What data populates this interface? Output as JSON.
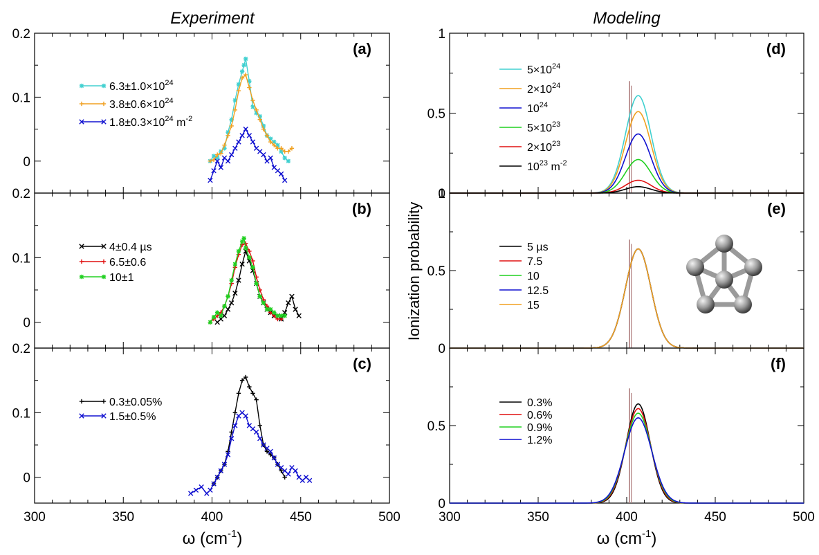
{
  "headers": {
    "left": "Experiment",
    "right": "Modeling"
  },
  "x_axis_label": {
    "base": "ω (cm",
    "exp": "-1",
    "close": ")"
  },
  "y_axis_label": "Ionization probability",
  "colors": {
    "cyan": "#40d0d0",
    "orange": "#f0a020",
    "blue": "#1010d0",
    "green": "#20d020",
    "red": "#e01010",
    "black": "#000000",
    "marker": "#b08080"
  },
  "chart_data": [
    {
      "type": "line",
      "panel": "(a)",
      "xlim": [
        300,
        500
      ],
      "ylim": [
        -0.05,
        0.2
      ],
      "x_ticks": [
        "300",
        "350",
        "400",
        "450",
        "500"
      ],
      "y_ticks": [
        {
          "v": 0,
          "label": "0"
        },
        {
          "v": 0.1,
          "label": "0.1"
        },
        {
          "v": 0.2,
          "label": "0.2"
        }
      ],
      "series": [
        {
          "name": "6.3±1.0×10^24",
          "color": "cyan",
          "marker": "*",
          "x": [
            399,
            401,
            403,
            405,
            407,
            409,
            411,
            413,
            415,
            417,
            418,
            419,
            421,
            423,
            425,
            427,
            429,
            431,
            433,
            435,
            437,
            439,
            441,
            443
          ],
          "y": [
            0.0,
            0.008,
            0.005,
            0.015,
            0.02,
            0.045,
            0.065,
            0.095,
            0.12,
            0.14,
            0.15,
            0.16,
            0.125,
            0.085,
            0.075,
            0.07,
            0.055,
            0.04,
            0.035,
            0.03,
            0.025,
            0.015,
            0.005,
            0.0
          ]
        },
        {
          "name": "3.8±0.6×10^24",
          "color": "orange",
          "marker": "+",
          "x": [
            399,
            401,
            403,
            405,
            407,
            409,
            411,
            413,
            415,
            417,
            419,
            421,
            423,
            425,
            427,
            429,
            431,
            433,
            435,
            437,
            439,
            441,
            443,
            445
          ],
          "y": [
            0.0,
            0.002,
            0.01,
            0.012,
            0.025,
            0.04,
            0.055,
            0.08,
            0.11,
            0.13,
            0.135,
            0.115,
            0.095,
            0.08,
            0.065,
            0.05,
            0.04,
            0.03,
            0.025,
            0.02,
            0.02,
            0.015,
            0.015,
            0.02
          ]
        },
        {
          "name": "1.8±0.3×10^24 m^-2",
          "color": "blue",
          "marker": "x",
          "x": [
            399,
            401,
            403,
            405,
            407,
            409,
            411,
            413,
            415,
            417,
            419,
            421,
            423,
            425,
            427,
            429,
            431,
            433,
            435,
            437,
            439,
            441
          ],
          "y": [
            -0.03,
            -0.015,
            0.0,
            -0.01,
            0.005,
            0.0,
            0.01,
            0.02,
            0.03,
            0.04,
            0.05,
            0.04,
            0.03,
            0.02,
            0.015,
            0.01,
            0.0,
            0.005,
            -0.01,
            -0.015,
            -0.02,
            -0.03
          ]
        }
      ]
    },
    {
      "type": "line",
      "panel": "(b)",
      "xlim": [
        300,
        500
      ],
      "ylim": [
        -0.04,
        0.2
      ],
      "x_ticks": [
        "300",
        "350",
        "400",
        "450",
        "500"
      ],
      "y_ticks": [
        {
          "v": 0,
          "label": "0"
        },
        {
          "v": 0.1,
          "label": "0.1"
        },
        {
          "v": 0.2,
          "label": "0.2"
        }
      ],
      "series": [
        {
          "name": "4±0.4 µs",
          "color": "black",
          "marker": "x",
          "x": [
            403,
            405,
            407,
            409,
            411,
            413,
            415,
            417,
            419,
            421,
            423,
            425,
            427,
            429,
            431,
            433,
            435,
            437,
            439,
            441,
            443,
            445,
            447,
            449
          ],
          "y": [
            0.0,
            0.005,
            0.01,
            0.02,
            0.03,
            0.045,
            0.065,
            0.09,
            0.11,
            0.095,
            0.08,
            0.06,
            0.04,
            0.03,
            0.02,
            0.015,
            0.01,
            0.01,
            0.005,
            0.015,
            0.03,
            0.04,
            0.02,
            0.01
          ]
        },
        {
          "name": "6.5±0.6",
          "color": "red",
          "marker": "+",
          "x": [
            399,
            401,
            403,
            405,
            407,
            409,
            411,
            413,
            415,
            417,
            419,
            421,
            423,
            425,
            427,
            429,
            431,
            433,
            435,
            437,
            439
          ],
          "y": [
            0.0,
            0.005,
            0.01,
            0.015,
            0.025,
            0.04,
            0.06,
            0.085,
            0.105,
            0.12,
            0.122,
            0.11,
            0.095,
            0.07,
            0.05,
            0.035,
            0.025,
            0.015,
            0.01,
            0.005,
            0.005
          ]
        },
        {
          "name": "10±1",
          "color": "green",
          "marker": "*",
          "x": [
            399,
            401,
            403,
            405,
            407,
            409,
            411,
            413,
            415,
            417,
            418,
            419,
            421,
            423,
            425,
            427,
            429,
            431,
            433,
            435,
            437,
            439,
            441
          ],
          "y": [
            0.0,
            0.008,
            0.015,
            0.01,
            0.025,
            0.04,
            0.065,
            0.09,
            0.11,
            0.125,
            0.13,
            0.115,
            0.1,
            0.085,
            0.06,
            0.04,
            0.03,
            0.02,
            0.02,
            0.015,
            0.01,
            0.01,
            0.01
          ]
        }
      ]
    },
    {
      "type": "line",
      "panel": "(c)",
      "xlim": [
        300,
        500
      ],
      "ylim": [
        -0.04,
        0.2
      ],
      "x_ticks": [
        "300",
        "350",
        "400",
        "450",
        "500"
      ],
      "y_ticks": [
        {
          "v": 0,
          "label": "0"
        },
        {
          "v": 0.1,
          "label": "0.1"
        },
        {
          "v": 0.2,
          "label": "0.2"
        }
      ],
      "series": [
        {
          "name": "0.3±0.05%",
          "color": "black",
          "marker": "+",
          "x": [
            401,
            403,
            405,
            407,
            409,
            411,
            413,
            415,
            417,
            419,
            421,
            423,
            425,
            427,
            429,
            431,
            433,
            435,
            437,
            439,
            441
          ],
          "y": [
            -0.01,
            0.0,
            0.01,
            0.02,
            0.04,
            0.07,
            0.1,
            0.13,
            0.15,
            0.155,
            0.14,
            0.13,
            0.12,
            0.08,
            0.05,
            0.04,
            0.035,
            0.03,
            0.02,
            0.01,
            0.0
          ]
        },
        {
          "name": "1.5±0.5%",
          "color": "blue",
          "marker": "x",
          "x": [
            388,
            391,
            394,
            397,
            399,
            401,
            403,
            405,
            407,
            409,
            411,
            413,
            415,
            417,
            419,
            421,
            423,
            425,
            427,
            429,
            431,
            433,
            435,
            437,
            439,
            441,
            443,
            445,
            447,
            449,
            451,
            453,
            455
          ],
          "y": [
            -0.025,
            -0.02,
            -0.015,
            -0.025,
            -0.02,
            -0.01,
            0.0,
            0.01,
            0.02,
            0.035,
            0.06,
            0.08,
            0.095,
            0.1,
            0.095,
            0.08,
            0.075,
            0.07,
            0.06,
            0.05,
            0.045,
            0.04,
            0.03,
            0.02,
            0.015,
            0.01,
            0.005,
            0.015,
            0.01,
            0.0,
            -0.005,
            0.0,
            -0.005
          ]
        }
      ]
    },
    {
      "type": "line",
      "panel": "(d)",
      "xlim": [
        300,
        500
      ],
      "ylim": [
        0,
        1
      ],
      "x_ticks": [
        "300",
        "350",
        "400",
        "450",
        "500"
      ],
      "y_ticks": [
        {
          "v": 0,
          "label": "0"
        },
        {
          "v": 0.5,
          "label": "0.5"
        },
        {
          "v": 1,
          "label": "1"
        }
      ],
      "gaussian": {
        "center": 406.5,
        "sigma": 7.2
      },
      "marker_line": {
        "x": 402,
        "height": 0.7
      },
      "series": [
        {
          "name": "5×10^24",
          "color": "cyan",
          "peak": 0.61
        },
        {
          "name": "2×10^24",
          "color": "orange",
          "peak": 0.51
        },
        {
          "name": "10^24",
          "color": "blue",
          "peak": 0.37
        },
        {
          "name": "5×10^23",
          "color": "green",
          "peak": 0.21
        },
        {
          "name": "2×10^23",
          "color": "red",
          "peak": 0.08
        },
        {
          "name": "10^23 m^-2",
          "color": "black",
          "peak": 0.04
        }
      ]
    },
    {
      "type": "line",
      "panel": "(e)",
      "xlim": [
        300,
        500
      ],
      "ylim": [
        0,
        1
      ],
      "x_ticks": [
        "300",
        "350",
        "400",
        "450",
        "500"
      ],
      "y_ticks": [
        {
          "v": 0,
          "label": "0"
        },
        {
          "v": 0.5,
          "label": "0.5"
        },
        {
          "v": 1,
          "label": "1"
        }
      ],
      "gaussian": {
        "center": 406.5,
        "sigma": 7.2
      },
      "marker_line": {
        "x": 402,
        "height": 0.7
      },
      "series": [
        {
          "name": "5 µs",
          "color": "black",
          "peak": 0.64
        },
        {
          "name": "7.5",
          "color": "red",
          "peak": 0.64
        },
        {
          "name": "10",
          "color": "green",
          "peak": 0.64
        },
        {
          "name": "12.5",
          "color": "blue",
          "peak": 0.64
        },
        {
          "name": "15",
          "color": "orange",
          "peak": 0.64
        }
      ]
    },
    {
      "type": "line",
      "panel": "(f)",
      "xlim": [
        300,
        500
      ],
      "ylim": [
        0,
        1
      ],
      "x_ticks": [
        "300",
        "350",
        "400",
        "450",
        "500"
      ],
      "y_ticks": [
        {
          "v": 0,
          "label": "0"
        },
        {
          "v": 0.5,
          "label": "0.5"
        }
      ],
      "gaussian": {
        "center": 406.5,
        "sigma": 7.2
      },
      "marker_line": {
        "x": 402,
        "height": 0.74
      },
      "series": [
        {
          "name": "0.3%",
          "color": "black",
          "peak": 0.64,
          "sigma": 6.8
        },
        {
          "name": "0.6%",
          "color": "red",
          "peak": 0.61,
          "sigma": 7.1
        },
        {
          "name": "0.9%",
          "color": "green",
          "peak": 0.58,
          "sigma": 7.4
        },
        {
          "name": "1.2%",
          "color": "blue",
          "peak": 0.55,
          "sigma": 7.7
        }
      ]
    }
  ]
}
